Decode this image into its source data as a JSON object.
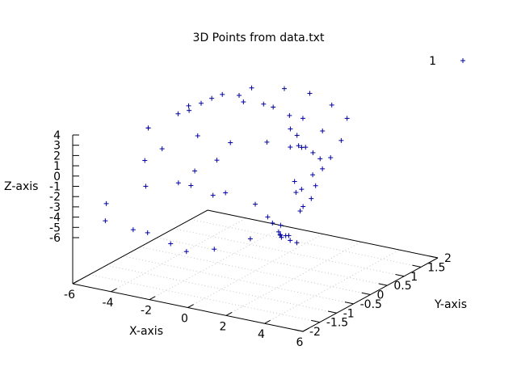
{
  "chart_data": {
    "type": "scatter",
    "title": "3D Points from data.txt",
    "xlabel": "X-axis",
    "ylabel": "Y-axis",
    "zlabel": "Z-axis",
    "xlim": [
      -6,
      6
    ],
    "ylim": [
      -2,
      2
    ],
    "zlim": [
      -6,
      4
    ],
    "x_ticks": [
      "-6",
      "-4",
      "-2",
      "0",
      "2",
      "4",
      "6"
    ],
    "y_ticks": [
      "-2",
      "-1.5",
      "-1",
      "-0.5",
      "0",
      "0.5",
      "1",
      "1.5",
      "2"
    ],
    "z_ticks": [
      "4",
      "3",
      "2",
      "1",
      "0",
      "-1",
      "-2",
      "-3",
      "-4",
      "-5",
      "-6"
    ],
    "grid": true,
    "legend": {
      "position": "top-right",
      "entries": [
        "1"
      ]
    },
    "marker": "+",
    "point_color": "#0000a0",
    "series": [
      {
        "name": "1",
        "points": [
          [
            -4.7,
            -0.5,
            2.5
          ],
          [
            -4.7,
            -0.5,
            2.5
          ],
          [
            -4.2,
            0.1,
            3.0
          ],
          [
            -4.0,
            0.3,
            3.5
          ],
          [
            -3.8,
            0.2,
            3.3
          ],
          [
            -3.7,
            0.5,
            3.5
          ],
          [
            -3.5,
            0.7,
            3.7
          ],
          [
            -3.3,
            0.9,
            3.8
          ],
          [
            -2.6,
            1.0,
            3.8
          ],
          [
            -2.2,
            0.9,
            3.5
          ],
          [
            -1.5,
            1.1,
            3.2
          ],
          [
            -1.0,
            1.1,
            3.1
          ],
          [
            0.2,
            0.9,
            3.1
          ],
          [
            0.9,
            0.9,
            3.1
          ],
          [
            1.3,
            0.3,
            3.3
          ],
          [
            2.0,
            0.1,
            3.3
          ],
          [
            2.8,
            0.4,
            3.5
          ],
          [
            3.5,
            -0.5,
            3.8
          ],
          [
            3.3,
            -0.5,
            3.7
          ],
          [
            2.7,
            -0.5,
            3.5
          ],
          [
            -3.0,
            1.6,
            3.3
          ],
          [
            -2.0,
            2.0,
            2.9
          ],
          [
            -0.5,
            1.9,
            3.2
          ],
          [
            1.0,
            1.7,
            3.0
          ],
          [
            2.5,
            1.3,
            3.0
          ],
          [
            3.6,
            0.5,
            2.7
          ],
          [
            4.1,
            -0.1,
            2.3
          ],
          [
            4.4,
            -0.8,
            2.0
          ],
          [
            4.7,
            -1.3,
            1.6
          ],
          [
            -4.0,
            -1.0,
            0.5
          ],
          [
            -3.8,
            -0.6,
            1.0
          ],
          [
            -3.0,
            0.0,
            1.5
          ],
          [
            -2.0,
            0.4,
            0.5
          ],
          [
            -0.8,
            0.8,
            0.3
          ],
          [
            0.5,
            1.0,
            0.1
          ],
          [
            1.6,
            0.8,
            0.2
          ],
          [
            2.5,
            0.5,
            0.5
          ],
          [
            3.5,
            0.0,
            0.8
          ],
          [
            4.2,
            -0.6,
            0.5
          ],
          [
            4.5,
            -0.9,
            -0.1
          ],
          [
            4.6,
            -1.2,
            -0.3
          ],
          [
            4.8,
            -1.4,
            -0.3
          ],
          [
            -2.1,
            -0.6,
            -0.5
          ],
          [
            -1.3,
            -0.4,
            0.5
          ],
          [
            2.4,
            -0.2,
            -0.5
          ],
          [
            3.0,
            -0.5,
            -0.8
          ],
          [
            -3.6,
            -1.2,
            -1.5
          ],
          [
            -2.6,
            -0.8,
            -1.5
          ],
          [
            -2.3,
            -0.6,
            -2.0
          ],
          [
            -1.5,
            -0.4,
            -3.0
          ],
          [
            -1.2,
            -0.2,
            -3.0
          ],
          [
            0.0,
            0.0,
            -4.0
          ],
          [
            1.0,
            -0.2,
            -4.5
          ],
          [
            1.6,
            -0.4,
            -4.5
          ],
          [
            2.2,
            -0.5,
            -4.3
          ],
          [
            2.8,
            -0.9,
            -4.0
          ],
          [
            3.4,
            -1.2,
            -3.5
          ],
          [
            3.6,
            -1.3,
            -3.3
          ],
          [
            4.0,
            -1.5,
            -3.0
          ],
          [
            4.4,
            -1.6,
            -2.5
          ],
          [
            -4.6,
            -1.8,
            -2.5
          ],
          [
            -4.3,
            -2.0,
            -3.7
          ],
          [
            -3.2,
            -1.8,
            -4.5
          ],
          [
            -2.8,
            -1.6,
            -5.0
          ],
          [
            -1.6,
            -1.6,
            -5.6
          ],
          [
            -0.6,
            -1.7,
            -5.8
          ],
          [
            0.5,
            -1.5,
            -5.5
          ],
          [
            1.5,
            -1.0,
            -5.0
          ],
          [
            2.8,
            -0.6,
            -4.9
          ],
          [
            3.4,
            -0.9,
            -4.6
          ],
          [
            4.1,
            -1.1,
            -4.2
          ]
        ]
      }
    ]
  }
}
